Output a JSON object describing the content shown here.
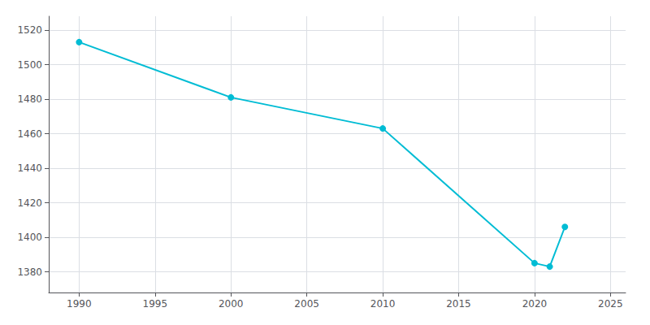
{
  "chart_data": {
    "type": "line",
    "x": [
      1990,
      2000,
      2010,
      2020,
      2021,
      2022
    ],
    "values": [
      1513,
      1481,
      1463,
      1385,
      1383,
      1406
    ],
    "color": "#00BCD4",
    "marker": "circle",
    "xlim": [
      1988,
      2026
    ],
    "ylim": [
      1368,
      1528
    ],
    "xticks": [
      1990,
      1995,
      2000,
      2005,
      2010,
      2015,
      2020,
      2025
    ],
    "yticks": [
      1380,
      1400,
      1420,
      1440,
      1460,
      1480,
      1500,
      1520
    ],
    "grid": true
  }
}
